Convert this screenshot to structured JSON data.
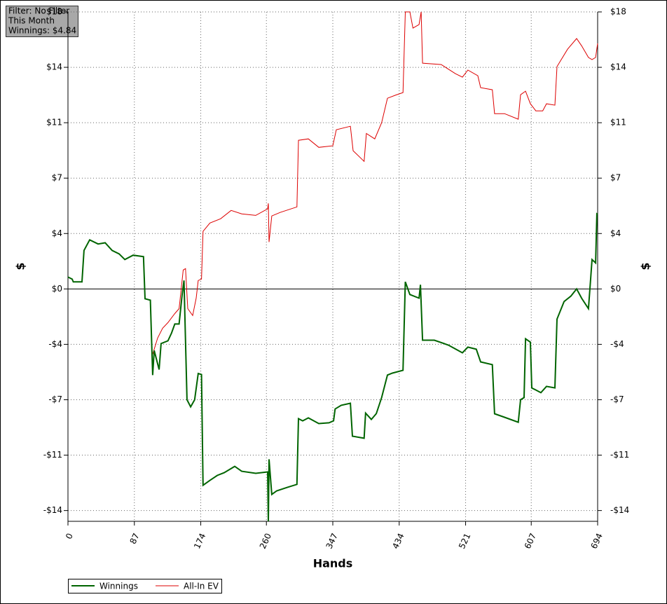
{
  "info": {
    "lines": [
      "Filter: No Filter",
      "This Month",
      "Winnings: $4.84"
    ]
  },
  "chart_data": {
    "type": "line",
    "xlabel": "Hands",
    "ylabel": "$",
    "y2label": "$",
    "xlim": [
      0,
      694
    ],
    "xticks": [
      0,
      87,
      174,
      260,
      347,
      434,
      521,
      607,
      694
    ],
    "ylim": [
      -15.1,
      18
    ],
    "yticks": [
      {
        "value": 18,
        "label": "$18"
      },
      {
        "value": 14.4,
        "label": "$14"
      },
      {
        "value": 10.8,
        "label": "$11"
      },
      {
        "value": 7.2,
        "label": "$7"
      },
      {
        "value": 3.6,
        "label": "$4"
      },
      {
        "value": 0,
        "label": "$0"
      },
      {
        "value": -3.6,
        "label": "-$4"
      },
      {
        "value": -7.2,
        "label": "-$7"
      },
      {
        "value": -10.8,
        "label": "-$11"
      },
      {
        "value": -14.4,
        "label": "-$14"
      }
    ],
    "grid": true,
    "series": [
      {
        "name": "Winnings",
        "color": "#006400",
        "x": [
          0,
          5.5,
          7,
          18.4,
          21,
          28.5,
          39.5,
          48.7,
          57.8,
          67,
          74.5,
          85.4,
          99,
          101,
          108,
          111,
          113,
          119.4,
          122,
          131,
          135.7,
          140,
          145.6,
          149.6,
          152,
          156,
          160.7,
          166,
          170.7,
          175,
          177,
          186,
          195.6,
          204.7,
          218.5,
          227.7,
          246,
          261.6,
          262.5,
          263.5,
          267,
          273.6,
          287,
          300,
          302,
          307.5,
          315,
          328.6,
          342,
          348,
          350,
          358,
          370,
          372.7,
          388,
          390,
          397.5,
          404,
          411,
          418.6,
          425,
          439,
          442,
          448,
          460,
          461.8,
          464.6,
          480,
          498.5,
          516.8,
          524,
          535,
          540.7,
          556,
          559,
          572,
          590,
          593,
          597.6,
          599.5,
          605.9,
          607.7,
          619.6,
          627,
          638,
          640.8,
          650,
          659,
          666.5,
          673,
          682,
          685,
          686.7,
          691.3,
          693,
          694
        ],
        "values": [
          0.77,
          0.64,
          0.46,
          0.46,
          2.5,
          3.19,
          2.92,
          3.0,
          2.5,
          2.28,
          1.91,
          2.19,
          2.1,
          -0.64,
          -0.73,
          -5.6,
          -4.0,
          -5.24,
          -3.55,
          -3.37,
          -2.87,
          -2.28,
          -2.28,
          -0.36,
          0.55,
          -7.2,
          -7.66,
          -7.2,
          -5.5,
          -5.56,
          -12.76,
          -12.44,
          -12.12,
          -11.94,
          -11.53,
          -11.85,
          -11.98,
          -11.89,
          -15.1,
          -11.07,
          -13.35,
          -13.12,
          -12.9,
          -12.7,
          -8.43,
          -8.57,
          -8.38,
          -8.75,
          -8.7,
          -8.57,
          -7.8,
          -7.56,
          -7.43,
          -9.57,
          -9.7,
          -8.07,
          -8.48,
          -8.1,
          -7.06,
          -5.6,
          -5.47,
          -5.29,
          0.46,
          -0.36,
          -0.6,
          0.27,
          -3.33,
          -3.33,
          -3.65,
          -4.15,
          -3.78,
          -3.92,
          -4.74,
          -4.92,
          -8.11,
          -8.34,
          -8.66,
          -7.2,
          -7.06,
          -3.24,
          -3.46,
          -6.43,
          -6.74,
          -6.33,
          -6.43,
          -1.96,
          -0.82,
          -0.46,
          0,
          -0.6,
          -1.28,
          0.77,
          1.91,
          1.69,
          4.88,
          4.84
        ]
      },
      {
        "name": "All-In EV",
        "color": "#dd0000",
        "x": [
          111,
          117.5,
          124,
          131,
          140,
          145.6,
          151,
          154,
          157,
          163.4,
          168,
          170.7,
          175,
          177,
          186,
          200,
          213.8,
          227.7,
          246,
          261.6,
          262.5,
          263.5,
          267,
          278,
          300,
          302,
          315,
          328.6,
          347,
          351.6,
          370,
          373.6,
          388,
          391,
          402,
          411,
          418.6,
          429.6,
          439,
          442,
          448,
          452,
          460,
          462.8,
          464.6,
          489,
          507.6,
          516.8,
          524,
          537,
          540.7,
          556,
          559,
          572,
          590,
          593,
          599.5,
          605.9,
          613,
          622,
          627,
          638,
          640.8,
          654.6,
          666.5,
          673,
          682,
          686.7,
          691.3,
          694
        ],
        "values": [
          -4.24,
          -3.19,
          -2.55,
          -2.19,
          -1.6,
          -1.28,
          1.23,
          1.32,
          -1.28,
          -1.73,
          -0.6,
          0.55,
          0.64,
          3.74,
          4.28,
          4.56,
          5.1,
          4.88,
          4.78,
          5.2,
          5.56,
          3.05,
          4.74,
          4.97,
          5.33,
          9.66,
          9.75,
          9.2,
          9.3,
          10.34,
          10.57,
          8.98,
          8.29,
          10.1,
          9.75,
          10.8,
          12.39,
          12.6,
          12.76,
          18,
          18,
          16.95,
          17.18,
          18,
          14.67,
          14.58,
          13.99,
          13.76,
          14.22,
          13.85,
          13.08,
          12.94,
          11.39,
          11.39,
          11.03,
          12.62,
          12.85,
          12.03,
          11.57,
          11.57,
          12.03,
          11.94,
          14.45,
          15.58,
          16.27,
          15.8,
          15.04,
          14.9,
          15.04,
          15.95
        ]
      }
    ]
  }
}
